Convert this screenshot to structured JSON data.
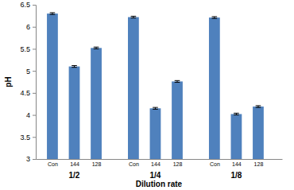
{
  "chart_data": {
    "type": "bar",
    "x_label": "Dilution rate",
    "y_label": "pH",
    "groups": [
      "1/2",
      "1/4",
      "1/8"
    ],
    "categories": [
      "Con",
      "144",
      "128",
      "Con",
      "144",
      "128",
      "Con",
      "144",
      "128"
    ],
    "values": [
      6.3,
      5.1,
      5.52,
      6.22,
      4.15,
      4.76,
      6.21,
      4.02,
      4.19
    ],
    "errors": [
      0.02,
      0.02,
      0.02,
      0.02,
      0.02,
      0.02,
      0.02,
      0.02,
      0.02
    ],
    "color": "#4f81bd",
    "ylim": [
      3,
      6.5
    ],
    "yticks": [
      3,
      3.5,
      4,
      4.5,
      5,
      5.5,
      6,
      6.5
    ],
    "grid": false
  }
}
